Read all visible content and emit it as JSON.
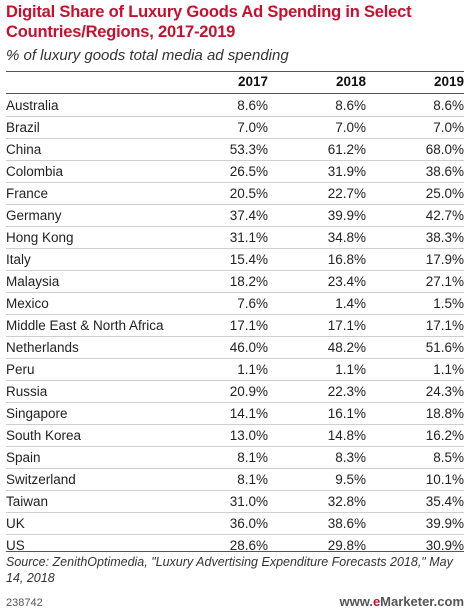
{
  "chart_data": {
    "type": "table",
    "title": "Digital Share of Luxury Goods Ad Spending in Select Countries/Regions, 2017-2019",
    "subtitle": "% of luxury goods total media ad spending",
    "columns": [
      "2017",
      "2018",
      "2019"
    ],
    "rows": [
      {
        "label": "Australia",
        "values": [
          "8.6%",
          "8.6%",
          "8.6%"
        ]
      },
      {
        "label": "Brazil",
        "values": [
          "7.0%",
          "7.0%",
          "7.0%"
        ]
      },
      {
        "label": "China",
        "values": [
          "53.3%",
          "61.2%",
          "68.0%"
        ]
      },
      {
        "label": "Colombia",
        "values": [
          "26.5%",
          "31.9%",
          "38.6%"
        ]
      },
      {
        "label": "France",
        "values": [
          "20.5%",
          "22.7%",
          "25.0%"
        ]
      },
      {
        "label": "Germany",
        "values": [
          "37.4%",
          "39.9%",
          "42.7%"
        ]
      },
      {
        "label": "Hong Kong",
        "values": [
          "31.1%",
          "34.8%",
          "38.3%"
        ]
      },
      {
        "label": "Italy",
        "values": [
          "15.4%",
          "16.8%",
          "17.9%"
        ]
      },
      {
        "label": "Malaysia",
        "values": [
          "18.2%",
          "23.4%",
          "27.1%"
        ]
      },
      {
        "label": "Mexico",
        "values": [
          "7.6%",
          "1.4%",
          "1.5%"
        ]
      },
      {
        "label": "Middle East & North Africa",
        "values": [
          "17.1%",
          "17.1%",
          "17.1%"
        ]
      },
      {
        "label": "Netherlands",
        "values": [
          "46.0%",
          "48.2%",
          "51.6%"
        ]
      },
      {
        "label": "Peru",
        "values": [
          "1.1%",
          "1.1%",
          "1.1%"
        ]
      },
      {
        "label": "Russia",
        "values": [
          "20.9%",
          "22.3%",
          "24.3%"
        ]
      },
      {
        "label": "Singapore",
        "values": [
          "14.1%",
          "16.1%",
          "18.8%"
        ]
      },
      {
        "label": "South Korea",
        "values": [
          "13.0%",
          "14.8%",
          "16.2%"
        ]
      },
      {
        "label": "Spain",
        "values": [
          "8.1%",
          "8.3%",
          "8.5%"
        ]
      },
      {
        "label": "Switzerland",
        "values": [
          "8.1%",
          "9.5%",
          "10.1%"
        ]
      },
      {
        "label": "Taiwan",
        "values": [
          "31.0%",
          "32.8%",
          "35.4%"
        ]
      },
      {
        "label": "UK",
        "values": [
          "36.0%",
          "38.6%",
          "39.9%"
        ]
      },
      {
        "label": "US",
        "values": [
          "28.6%",
          "29.8%",
          "30.9%"
        ]
      }
    ],
    "source": "Source: ZenithOptimedia, \"Luxury Advertising Expenditure Forecasts 2018,\" May 14, 2018",
    "chart_id": "238742",
    "brand": {
      "prefix": "www.",
      "accent": "e",
      "name": "Marketer",
      "suffix": ".com"
    }
  },
  "colors": {
    "title": "#c8102e",
    "rule": "#555555",
    "row_separator": "#cfcfcf",
    "text": "#222222"
  }
}
